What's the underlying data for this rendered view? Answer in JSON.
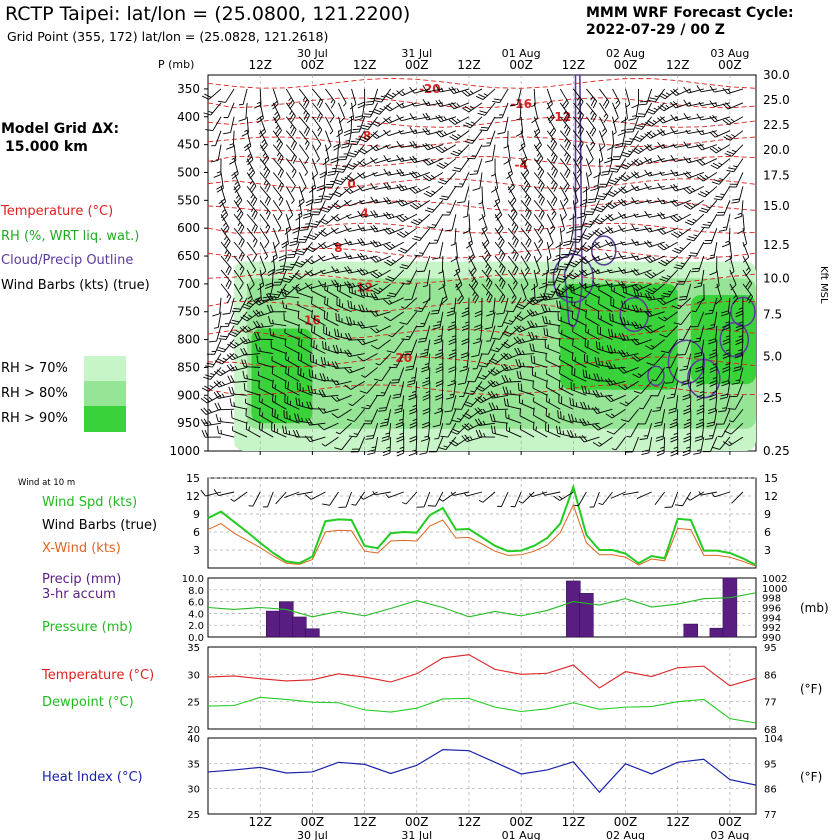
{
  "header": {
    "title": "RCTP Taipei:  lat/lon = (25.0800, 121.2200)",
    "subtitle": "Grid Point (355, 172) lat/lon = (25.0828, 121.2618)",
    "cycle_label": "MMM WRF Forecast Cycle:",
    "cycle_value": "2022-07-29 / 00  Z"
  },
  "time_axis": {
    "ticks": [
      "12Z",
      "00Z",
      "12Z",
      "00Z",
      "12Z",
      "00Z",
      "12Z",
      "00Z",
      "12Z",
      "00Z"
    ],
    "dates": [
      "30 Jul",
      "31 Jul",
      "01 Aug",
      "02 Aug",
      "03 Aug"
    ]
  },
  "left_panel": {
    "model_grid_label": "Model Grid ΔX:",
    "model_grid_value": "15.000 km",
    "legend": {
      "temperature": "Temperature (°C)",
      "rh": "RH (%, WRT liq. wat.)",
      "cloud": "Cloud/Precip Outline",
      "wind": "Wind Barbs (kts) (true)"
    },
    "rh_keys": [
      "RH > 70%",
      "RH > 80%",
      "RH > 90%"
    ]
  },
  "colors": {
    "temp": "#dd2222",
    "rh70": "#c8f5c8",
    "rh80": "#96e496",
    "rh90": "#3ad23a",
    "cloud": "#5a3a9a",
    "wind_spd": "#22cc22",
    "x_wind": "#dd6622",
    "precip": "#5a1e82",
    "pressure": "#22bb22",
    "temp_line": "#dd2222",
    "dew": "#22cc22",
    "heat": "#1a22aa"
  },
  "chart_data": [
    {
      "type": "heatmap",
      "name": "vertical cross-section",
      "ylabel": "P (mb)",
      "y2label": "Kft MSL",
      "pressure_ticks": [
        350,
        400,
        450,
        500,
        550,
        600,
        650,
        700,
        750,
        800,
        850,
        900,
        950,
        1000
      ],
      "height_ticks": [
        "30.0",
        "25.0",
        "22.5",
        "20.0",
        "17.5",
        "15.0",
        "12.5",
        "10.0",
        "7.5",
        "5.0",
        "2.5",
        "0.25"
      ],
      "temperature_labels": [
        {
          "value": "-20",
          "time": 51,
          "p": 357
        },
        {
          "value": "-16",
          "time": 72,
          "p": 384
        },
        {
          "value": "-12",
          "time": 81,
          "p": 408
        },
        {
          "value": "-8",
          "time": 36,
          "p": 442
        },
        {
          "value": "-4",
          "time": 72,
          "p": 494
        },
        {
          "value": "0",
          "time": 33,
          "p": 528
        },
        {
          "value": "4",
          "time": 36,
          "p": 581
        },
        {
          "value": "8",
          "time": 30,
          "p": 643
        },
        {
          "value": "12",
          "time": 36,
          "p": 714
        },
        {
          "value": "16",
          "time": 24,
          "p": 773
        },
        {
          "value": "20",
          "time": 45,
          "p": 840
        }
      ],
      "rh_areas": [
        {
          "level": "RH > 70%",
          "t0": 6,
          "t1": 126,
          "p_top": 660,
          "p_bot": 1000
        },
        {
          "level": "RH > 80%",
          "t0": 9,
          "t1": 126,
          "p_top": 690,
          "p_bot": 960
        },
        {
          "level": "RH > 90%",
          "t0": 10,
          "t1": 24,
          "p_top": 780,
          "p_bot": 950
        },
        {
          "level": "RH > 90%",
          "t0": 81,
          "t1": 108,
          "p_top": 700,
          "p_bot": 890
        },
        {
          "level": "RH > 90%",
          "t0": 111,
          "t1": 126,
          "p_top": 720,
          "p_bot": 880
        }
      ]
    },
    {
      "type": "line",
      "name": "wind",
      "title": "Wind at 10 m",
      "labels": [
        "Wind Spd (kts)",
        "Wind Barbs (true)",
        "X-Wind (kts)"
      ],
      "ylim": [
        0,
        15
      ],
      "yticks": [
        3,
        6,
        9,
        12,
        15
      ],
      "x": [
        0,
        3,
        6,
        9,
        12,
        15,
        18,
        21,
        24,
        27,
        30,
        33,
        36,
        39,
        42,
        45,
        48,
        51,
        54,
        57,
        60,
        63,
        66,
        69,
        72,
        75,
        78,
        81,
        84,
        87,
        90,
        93,
        96,
        99,
        102,
        105,
        108,
        111,
        114,
        117,
        120,
        123,
        126
      ],
      "series": [
        {
          "name": "Wind Spd (kts)",
          "values": [
            8.3,
            9.4,
            7.7,
            6.0,
            4.2,
            2.5,
            1.1,
            0.8,
            1.9,
            7.8,
            8.1,
            8.0,
            3.7,
            3.3,
            5.8,
            6.0,
            5.9,
            8.8,
            10.0,
            6.4,
            6.5,
            5.1,
            3.7,
            2.8,
            2.9,
            3.7,
            5.0,
            7.4,
            13.5,
            5.5,
            3.0,
            3.0,
            2.4,
            0.8,
            2.0,
            1.6,
            8.2,
            8.0,
            2.9,
            2.9,
            2.5,
            1.6,
            0.5
          ]
        },
        {
          "name": "X-Wind (kts)",
          "values": [
            6.4,
            7.4,
            5.8,
            4.6,
            3.4,
            2.0,
            0.8,
            0.6,
            1.4,
            6.0,
            6.3,
            6.2,
            2.8,
            2.5,
            4.5,
            4.6,
            4.5,
            7.0,
            8.0,
            5.0,
            5.1,
            4.0,
            2.8,
            2.1,
            2.2,
            2.8,
            3.8,
            5.9,
            10.5,
            4.2,
            2.2,
            2.2,
            1.8,
            0.5,
            1.5,
            1.2,
            6.6,
            6.4,
            2.1,
            2.1,
            1.8,
            1.1,
            0.3
          ]
        }
      ]
    },
    {
      "type": "bar",
      "name": "precip and pressure",
      "labels": [
        "Precip (mm)",
        "3-hr accum",
        "Pressure (mb)"
      ],
      "ylim": [
        0,
        10
      ],
      "yticks": [
        "0.0",
        "2.0",
        "4.0",
        "6.0",
        "8.0",
        "10.0"
      ],
      "y2ticks": [
        "990",
        "992",
        "994",
        "996",
        "998",
        "1000",
        "1002"
      ],
      "y2label": "(mb)",
      "precip": [
        {
          "t": 15,
          "value": 4.4
        },
        {
          "t": 18,
          "value": 6.0
        },
        {
          "t": 21,
          "value": 3.4
        },
        {
          "t": 24,
          "value": 1.4
        },
        {
          "t": 84,
          "value": 9.5
        },
        {
          "t": 87,
          "value": 7.4
        },
        {
          "t": 111,
          "value": 2.2
        },
        {
          "t": 117,
          "value": 1.5
        },
        {
          "t": 120,
          "value": 10.0
        }
      ],
      "pressure": {
        "x": [
          0,
          6,
          12,
          18,
          24,
          30,
          36,
          42,
          48,
          54,
          60,
          66,
          72,
          78,
          84,
          90,
          96,
          102,
          108,
          114,
          120,
          126
        ],
        "values": [
          996.0,
          995.6,
          996.0,
          995.6,
          994.1,
          995.2,
          994.3,
          995.8,
          997.4,
          996.0,
          994.1,
          995.2,
          994.3,
          995.4,
          997.2,
          996.5,
          997.8,
          996.1,
          996.7,
          997.8,
          998.0,
          999.0
        ]
      }
    },
    {
      "type": "line",
      "name": "temperature and dewpoint",
      "labels": [
        "Temperature (°C)",
        "Dewpoint (°C)"
      ],
      "ylim": [
        20,
        35
      ],
      "yticks": [
        "20",
        "25",
        "30",
        "35"
      ],
      "y2ticks": [
        "68",
        "77",
        "86",
        "95"
      ],
      "y2label": "(°F)",
      "x": [
        0,
        6,
        12,
        18,
        24,
        30,
        36,
        42,
        48,
        54,
        60,
        66,
        72,
        78,
        84,
        90,
        96,
        102,
        108,
        114,
        120,
        126
      ],
      "series": [
        {
          "name": "Temperature (°C)",
          "values": [
            29.5,
            29.7,
            29.2,
            28.8,
            29.0,
            30.1,
            29.5,
            28.6,
            30.1,
            33.0,
            33.6,
            30.9,
            30.0,
            30.2,
            31.7,
            27.5,
            30.5,
            29.6,
            31.2,
            31.5,
            27.9,
            29.3
          ]
        },
        {
          "name": "Dewpoint (°C)",
          "values": [
            24.2,
            24.3,
            25.8,
            25.4,
            24.9,
            24.8,
            23.5,
            23.1,
            23.8,
            25.5,
            25.6,
            24.0,
            23.2,
            23.7,
            24.8,
            23.6,
            24.0,
            24.1,
            25.0,
            25.4,
            21.9,
            21.1
          ]
        }
      ]
    },
    {
      "type": "line",
      "name": "heat index",
      "labels": [
        "Heat Index (°C)"
      ],
      "ylim": [
        25,
        40
      ],
      "yticks": [
        "25",
        "30",
        "35",
        "40"
      ],
      "y2ticks": [
        "77",
        "86",
        "95",
        "104"
      ],
      "y2label": "(°F)",
      "x": [
        0,
        6,
        12,
        18,
        24,
        30,
        36,
        42,
        48,
        54,
        60,
        66,
        72,
        78,
        84,
        90,
        96,
        102,
        108,
        114,
        120,
        126
      ],
      "series": [
        {
          "name": "Heat Index (°C)",
          "values": [
            33.3,
            33.7,
            34.2,
            33.1,
            33.3,
            35.2,
            34.8,
            33.0,
            34.6,
            37.7,
            37.5,
            35.2,
            32.9,
            33.7,
            35.3,
            29.3,
            34.9,
            32.9,
            35.2,
            35.8,
            31.8,
            30.7
          ]
        }
      ]
    }
  ]
}
